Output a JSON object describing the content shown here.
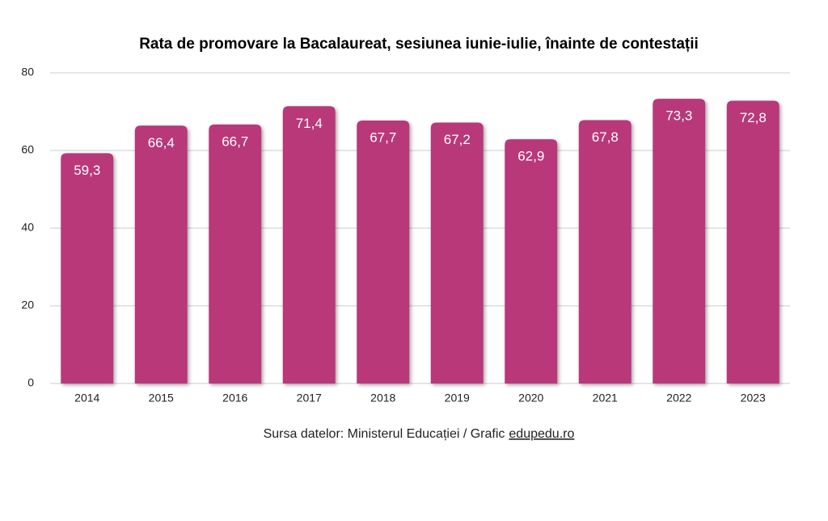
{
  "chart_data": {
    "type": "bar",
    "title": "Rata de promovare la Bacalaureat, sesiunea iunie-iulie, înainte de contestații",
    "categories": [
      "2014",
      "2015",
      "2016",
      "2017",
      "2018",
      "2019",
      "2020",
      "2021",
      "2022",
      "2023"
    ],
    "values": [
      59.3,
      66.4,
      66.7,
      71.4,
      67.7,
      67.2,
      62.9,
      67.8,
      73.3,
      72.8
    ],
    "value_labels": [
      "59,3",
      "66,4",
      "66,7",
      "71,4",
      "67,7",
      "67,2",
      "62,9",
      "67,8",
      "73,3",
      "72,8"
    ],
    "color": "#b8377a",
    "ylim": [
      0,
      80
    ],
    "yticks": [
      0,
      20,
      40,
      60,
      80
    ],
    "grid": true,
    "source": "Sursa datelor: Ministerul Educației / Grafic",
    "source_link": "edupedu.ro"
  }
}
